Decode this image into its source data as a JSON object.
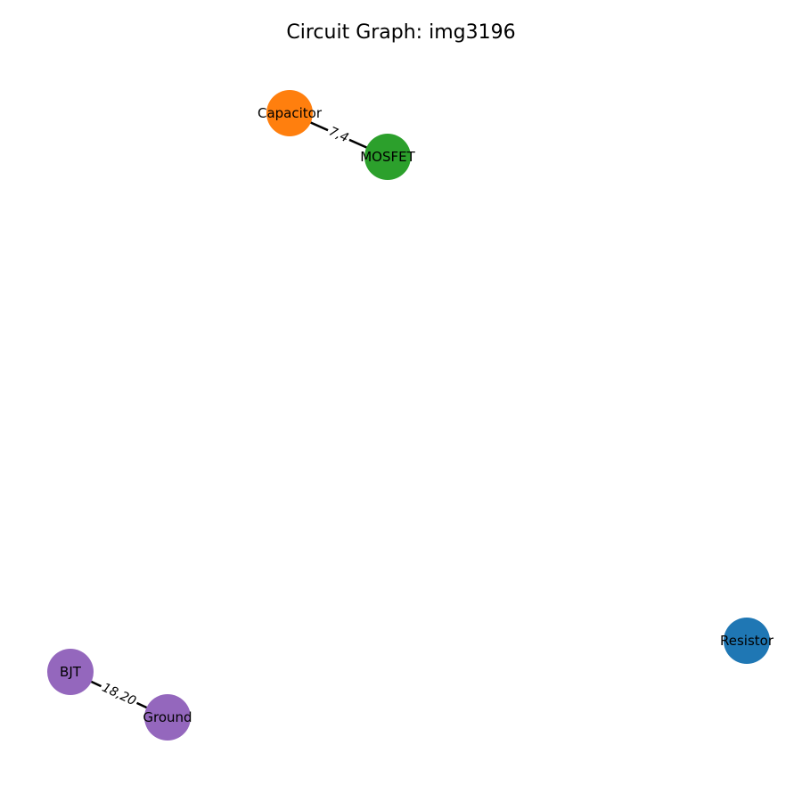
{
  "title": "Circuit Graph: img3196",
  "nodes": [
    {
      "id": "capacitor",
      "label": "Capacitor",
      "color": "#ff7f0e"
    },
    {
      "id": "mosfet",
      "label": "MOSFET",
      "color": "#2ca02c"
    },
    {
      "id": "bjt",
      "label": "BJT",
      "color": "#9467bd"
    },
    {
      "id": "ground",
      "label": "Ground",
      "color": "#9467bd"
    },
    {
      "id": "resistor",
      "label": "Resistor",
      "color": "#1f77b4"
    }
  ],
  "edges": [
    {
      "source": "capacitor",
      "target": "mosfet",
      "label": "7,4"
    },
    {
      "source": "bjt",
      "target": "ground",
      "label": "18,20"
    }
  ]
}
